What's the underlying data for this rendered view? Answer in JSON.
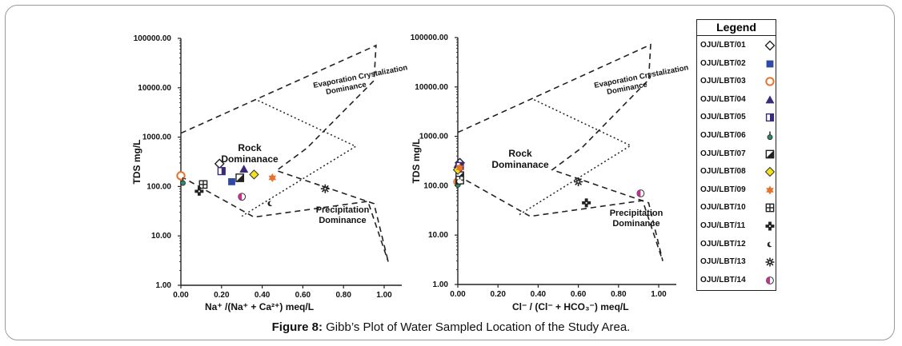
{
  "caption": {
    "label": "Figure 8:",
    "text": " Gibb’s Plot of Water Sampled Location of the Study Area."
  },
  "legend": {
    "title": "Legend",
    "items": [
      {
        "id": "OJU/LBT/01",
        "marker": "diamond-open",
        "color": "#222222"
      },
      {
        "id": "OJU/LBT/02",
        "marker": "square",
        "color": "#2f4aa5"
      },
      {
        "id": "OJU/LBT/03",
        "marker": "circle-open",
        "color": "#e8732a"
      },
      {
        "id": "OJU/LBT/04",
        "marker": "triangle",
        "color": "#3b2a7a"
      },
      {
        "id": "OJU/LBT/05",
        "marker": "half-square",
        "color": "#3b2a7a"
      },
      {
        "id": "OJU/LBT/06",
        "marker": "drop",
        "color": "#2e8b6a"
      },
      {
        "id": "OJU/LBT/07",
        "marker": "diag-square",
        "color": "#222222"
      },
      {
        "id": "OJU/LBT/08",
        "marker": "diamond",
        "color": "#f2e21a"
      },
      {
        "id": "OJU/LBT/09",
        "marker": "star6",
        "color": "#e8732a"
      },
      {
        "id": "OJU/LBT/10",
        "marker": "grid-square",
        "color": "#222222"
      },
      {
        "id": "OJU/LBT/11",
        "marker": "cross-blob",
        "color": "#222222"
      },
      {
        "id": "OJU/LBT/12",
        "marker": "crescent",
        "color": "#222222"
      },
      {
        "id": "OJU/LBT/13",
        "marker": "burst",
        "color": "#222222"
      },
      {
        "id": "OJU/LBT/14",
        "marker": "half-circle",
        "color": "#c2338f"
      }
    ]
  },
  "chart_data": [
    {
      "type": "scatter",
      "xlabel": "Na⁺ /(Na⁺ + Ca²⁺) meq/L",
      "ylabel": "TDS mg/L",
      "y_scale": "log",
      "xlim": [
        0,
        1.0
      ],
      "ylim": [
        1,
        100000
      ],
      "x_ticks": [
        "0.00",
        "0.20",
        "0.40",
        "0.60",
        "0.80",
        "1.00"
      ],
      "y_ticks": [
        "1.00",
        "10.00",
        "100.00",
        "1000.00",
        "10000.00",
        "100000.00"
      ],
      "x_tick_values": [
        0,
        0.2,
        0.4,
        0.6,
        0.8,
        1.0
      ],
      "y_tick_values": [
        1,
        10,
        100,
        1000,
        10000,
        100000
      ],
      "regions": {
        "evaporation": "Evaporation Crystalization Dominance",
        "rock": "Rock Dominanace",
        "precipitation": "Precipitation Dominance"
      },
      "points": [
        {
          "id": "OJU/LBT/01",
          "x": 0.19,
          "y": 290
        },
        {
          "id": "OJU/LBT/02",
          "x": 0.25,
          "y": 125
        },
        {
          "id": "OJU/LBT/03",
          "x": 0.0,
          "y": 165
        },
        {
          "id": "OJU/LBT/04",
          "x": 0.31,
          "y": 225
        },
        {
          "id": "OJU/LBT/05",
          "x": 0.2,
          "y": 205
        },
        {
          "id": "OJU/LBT/06",
          "x": 0.01,
          "y": 125
        },
        {
          "id": "OJU/LBT/07",
          "x": 0.29,
          "y": 150
        },
        {
          "id": "OJU/LBT/08",
          "x": 0.36,
          "y": 175
        },
        {
          "id": "OJU/LBT/09",
          "x": 0.45,
          "y": 150
        },
        {
          "id": "OJU/LBT/10",
          "x": 0.11,
          "y": 110
        },
        {
          "id": "OJU/LBT/11",
          "x": 0.09,
          "y": 80
        },
        {
          "id": "OJU/LBT/12",
          "x": 0.44,
          "y": 45
        },
        {
          "id": "OJU/LBT/13",
          "x": 0.71,
          "y": 90
        },
        {
          "id": "OJU/LBT/14",
          "x": 0.3,
          "y": 62
        }
      ]
    },
    {
      "type": "scatter",
      "xlabel": "Cl⁻ / (Cl⁻ + HCO₃⁻)  meq/L",
      "ylabel": "TDS mg/L",
      "y_scale": "log",
      "xlim": [
        0,
        1.0
      ],
      "ylim": [
        1,
        100000
      ],
      "x_ticks": [
        "0.00",
        "0.20",
        "0.40",
        "0.60",
        "0.80",
        "1.00"
      ],
      "y_ticks": [
        "1.00",
        "10.00",
        "100.00",
        "1000.00",
        "10000.00",
        "100000.00"
      ],
      "x_tick_values": [
        0,
        0.2,
        0.4,
        0.6,
        0.8,
        1.0
      ],
      "y_tick_values": [
        1,
        10,
        100,
        1000,
        10000,
        100000
      ],
      "regions": {
        "evaporation": "Evaporation Crystalization Dominance",
        "rock": "Rock Dominanace",
        "precipitation": "Precipitation Dominance"
      },
      "points": [
        {
          "id": "OJU/LBT/01",
          "x": 0.01,
          "y": 290
        },
        {
          "id": "OJU/LBT/02",
          "x": 0.01,
          "y": 140
        },
        {
          "id": "OJU/LBT/03",
          "x": 0.0,
          "y": 120
        },
        {
          "id": "OJU/LBT/04",
          "x": 0.0,
          "y": 270
        },
        {
          "id": "OJU/LBT/05",
          "x": 0.01,
          "y": 250
        },
        {
          "id": "OJU/LBT/06",
          "x": 0.0,
          "y": 110
        },
        {
          "id": "OJU/LBT/07",
          "x": 0.01,
          "y": 160
        },
        {
          "id": "OJU/LBT/08",
          "x": 0.0,
          "y": 210
        },
        {
          "id": "OJU/LBT/09",
          "x": 0.01,
          "y": 230
        },
        {
          "id": "OJU/LBT/10",
          "x": 0.01,
          "y": 130
        },
        {
          "id": "OJU/LBT/11",
          "x": 0.64,
          "y": 45
        },
        {
          "id": "OJU/LBT/12",
          "x": 0.0,
          "y": 120
        },
        {
          "id": "OJU/LBT/13",
          "x": 0.6,
          "y": 120
        },
        {
          "id": "OJU/LBT/14",
          "x": 0.91,
          "y": 70
        }
      ]
    }
  ]
}
